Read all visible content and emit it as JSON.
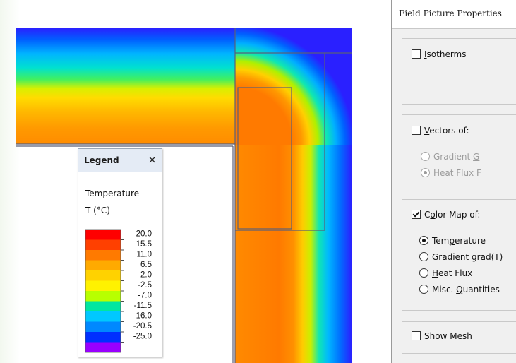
{
  "legend": {
    "title": "Legend",
    "close_symbol": "×",
    "quantity": "Temperature",
    "unit": "T (°C)",
    "levels": [
      "20.0",
      "15.5",
      "11.0",
      "6.5",
      "2.0",
      "-2.5",
      "-7.0",
      "-11.5",
      "-16.0",
      "-20.5",
      "-25.0"
    ],
    "band_colors": [
      "#ff0000",
      "#ff4000",
      "#ff7a00",
      "#ffaa00",
      "#ffd200",
      "#fff200",
      "#b8ff00",
      "#00e6a0",
      "#00c8ff",
      "#0088ff",
      "#0030ff",
      "#9900ff"
    ]
  },
  "panel": {
    "title": "Field Picture Properties",
    "isotherms": {
      "label_pre": "",
      "label_ul": "I",
      "label_post": "sotherms",
      "checked": false
    },
    "vectors": {
      "label_pre": "",
      "label_ul": "V",
      "label_post": "ectors of:",
      "checked": false,
      "options": [
        {
          "pre": "Gradient ",
          "ul": "G",
          "post": "",
          "selected": false
        },
        {
          "pre": "Heat Flux ",
          "ul": "F",
          "post": "",
          "selected": true
        }
      ]
    },
    "color_map": {
      "label_pre": "C",
      "label_ul": "o",
      "label_post": "lor Map of:",
      "checked": true,
      "options": [
        {
          "pre": "Tem",
          "ul": "p",
          "post": "erature",
          "selected": true
        },
        {
          "pre": "Gra",
          "ul": "d",
          "post": "ient grad(T)",
          "selected": false
        },
        {
          "pre": "",
          "ul": "H",
          "post": "eat Flux",
          "selected": false
        },
        {
          "pre": "Misc. ",
          "ul": "Q",
          "post": "uantities",
          "selected": false
        }
      ]
    },
    "show_mesh": {
      "label_pre": "Show ",
      "label_ul": "M",
      "label_post": "esh",
      "checked": false
    }
  }
}
